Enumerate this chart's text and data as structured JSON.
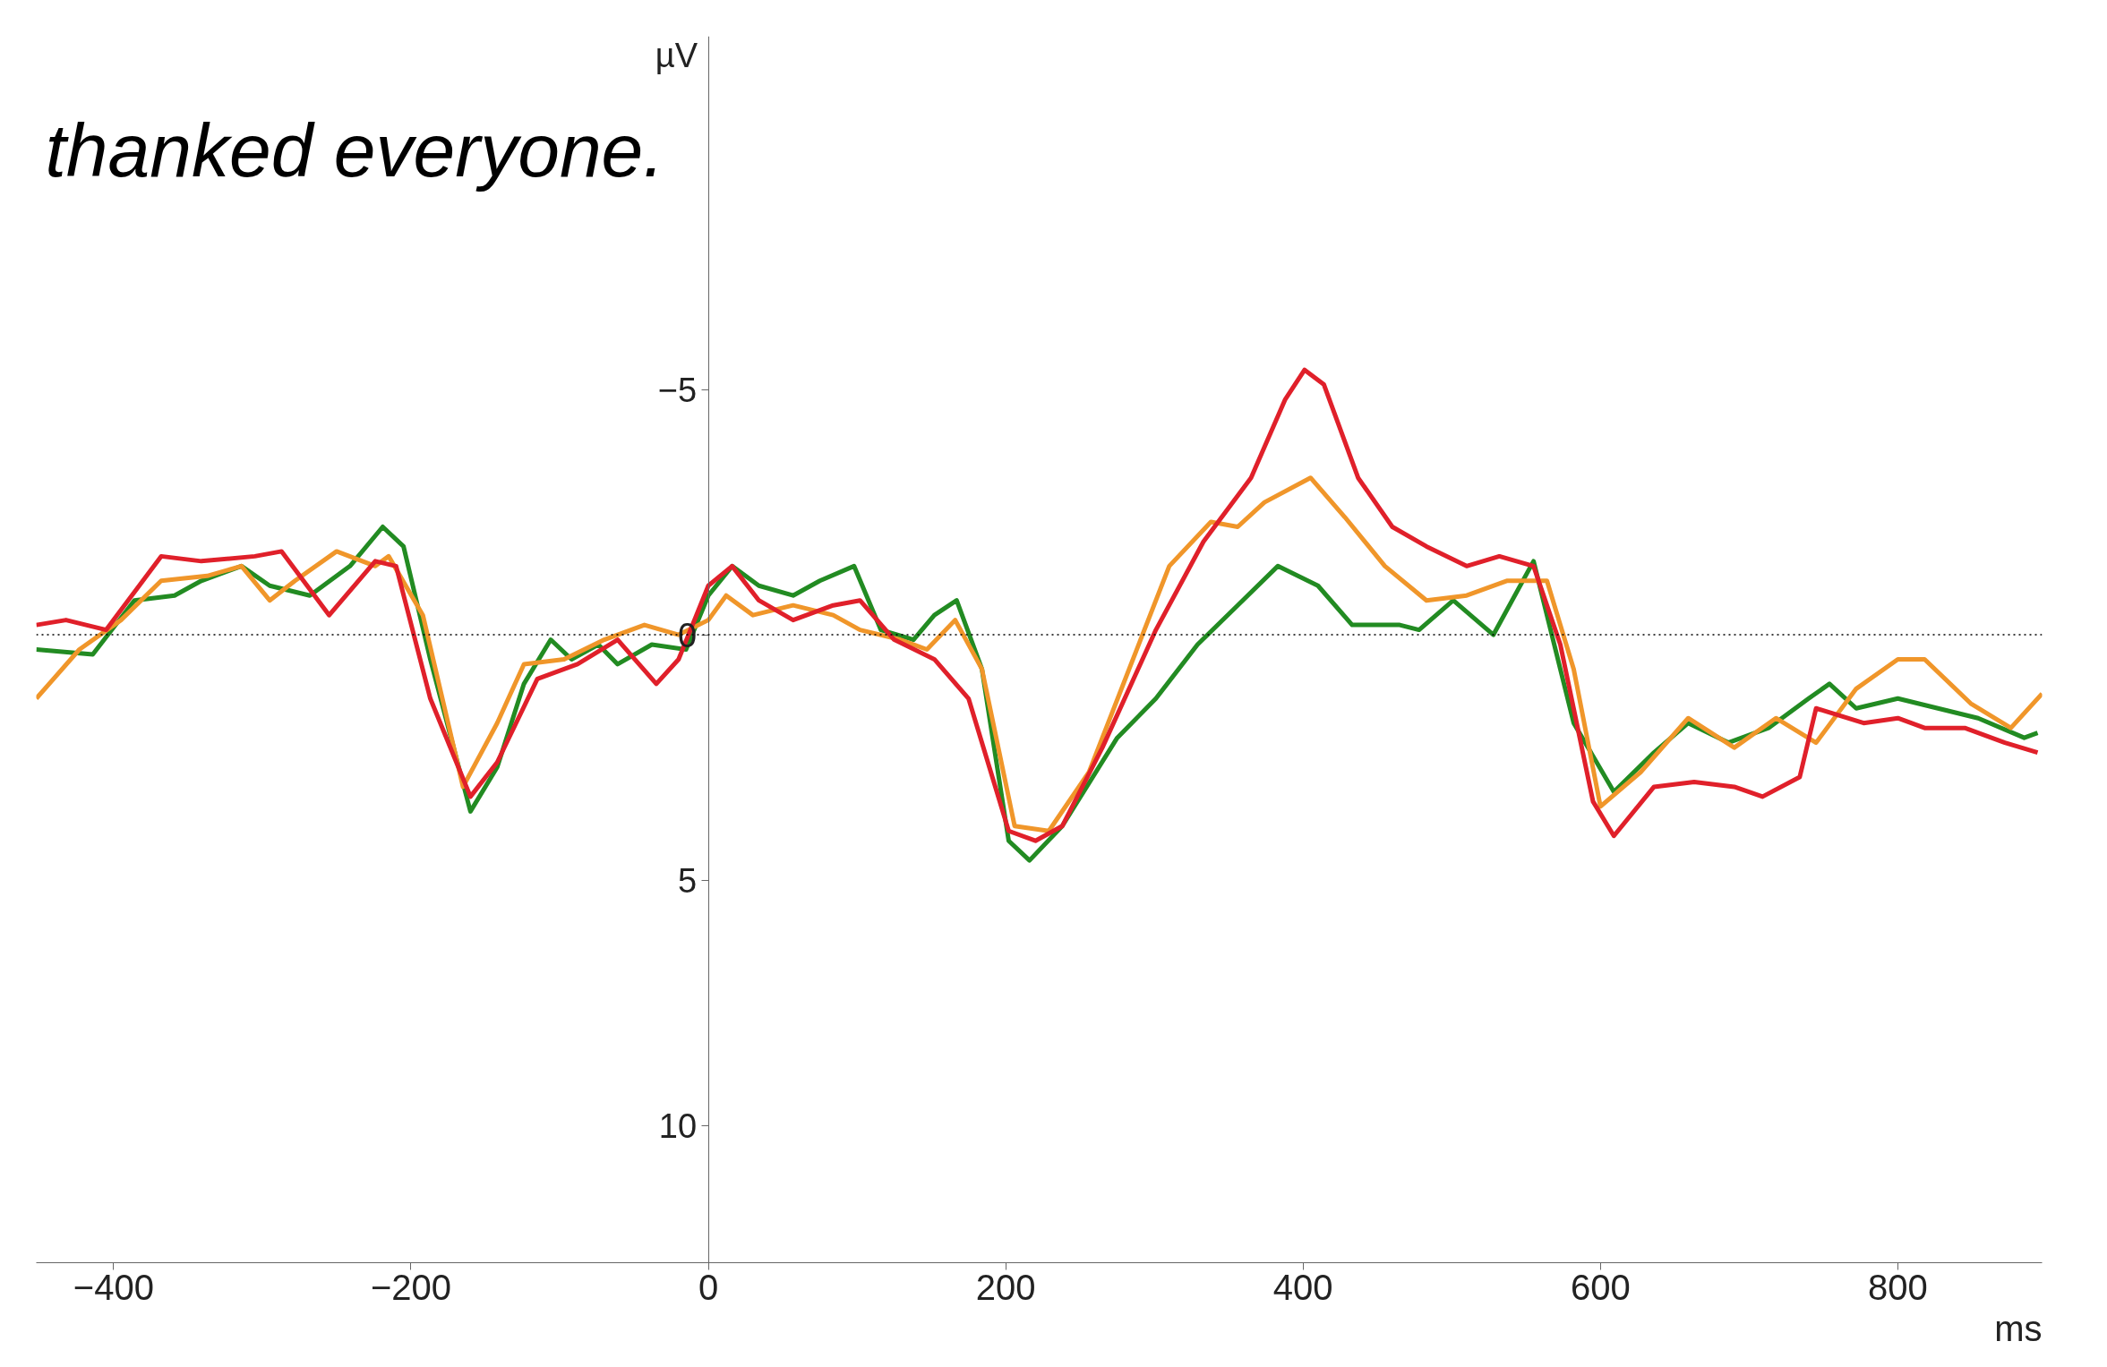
{
  "chart_data": {
    "type": "line",
    "xlabel": "ms",
    "ylabel": "µV",
    "annotations": [
      "thanked everyone."
    ],
    "xlim": [
      -452,
      897
    ],
    "ylim": [
      12.8,
      -12.2
    ],
    "xticks": [
      -400,
      -200,
      0,
      200,
      400,
      600,
      800
    ],
    "yticks": [
      -5,
      0,
      5,
      10
    ],
    "grid": false,
    "marker": "none",
    "line_style": "solid",
    "ref_lines": [
      {
        "axis": "y",
        "value": 0,
        "line_style": "dotted",
        "color": "#000000"
      }
    ],
    "series": [
      {
        "color": "#228b22",
        "x": [
          -452,
          -414,
          -386,
          -359,
          -341,
          -314,
          -295,
          -268,
          -241,
          -219,
          -205,
          -187,
          -160,
          -142,
          -124,
          -106,
          -92,
          -74,
          -61,
          -38,
          -15,
          0,
          16,
          34,
          57,
          75,
          98,
          116,
          138,
          152,
          167,
          184,
          202,
          216,
          238,
          275,
          301,
          329,
          356,
          383,
          410,
          433,
          465,
          478,
          501,
          528,
          555,
          582,
          609,
          636,
          659,
          686,
          713,
          740,
          754,
          772,
          800,
          827,
          854,
          885,
          894
        ],
        "values": [
          0.3,
          0.4,
          -0.7,
          -0.8,
          -1.1,
          -1.4,
          -1.0,
          -0.8,
          -1.4,
          -2.2,
          -1.8,
          0.5,
          3.6,
          2.7,
          1.0,
          0.1,
          0.5,
          0.2,
          0.6,
          0.2,
          0.3,
          -0.8,
          -1.4,
          -1.0,
          -0.8,
          -1.1,
          -1.4,
          -0.1,
          0.1,
          -0.4,
          -0.7,
          0.7,
          4.2,
          4.6,
          3.9,
          2.1,
          1.3,
          0.2,
          -0.6,
          -1.4,
          -1.0,
          -0.2,
          -0.2,
          -0.1,
          -0.7,
          0.0,
          -1.5,
          1.8,
          3.2,
          2.4,
          1.8,
          2.2,
          1.9,
          1.3,
          1.0,
          1.5,
          1.3,
          1.5,
          1.7,
          2.1,
          2.0
        ]
      },
      {
        "color": "#f0962a",
        "x": [
          -452,
          -423,
          -395,
          -368,
          -337,
          -314,
          -295,
          -278,
          -250,
          -224,
          -215,
          -192,
          -165,
          -142,
          -124,
          -97,
          -70,
          -43,
          -20,
          0,
          12,
          30,
          57,
          84,
          102,
          129,
          147,
          166,
          184,
          206,
          229,
          256,
          283,
          310,
          338,
          356,
          374,
          405,
          428,
          455,
          483,
          510,
          537,
          564,
          582,
          600,
          627,
          659,
          690,
          718,
          745,
          772,
          800,
          818,
          849,
          876,
          897
        ],
        "values": [
          1.3,
          0.3,
          -0.3,
          -1.1,
          -1.2,
          -1.4,
          -0.7,
          -1.1,
          -1.7,
          -1.4,
          -1.6,
          -0.4,
          3.1,
          1.8,
          0.6,
          0.5,
          0.1,
          -0.2,
          0.0,
          -0.3,
          -0.8,
          -0.4,
          -0.6,
          -0.4,
          -0.1,
          0.1,
          0.3,
          -0.3,
          0.7,
          3.9,
          4.0,
          2.8,
          0.7,
          -1.4,
          -2.3,
          -2.2,
          -2.7,
          -3.2,
          -2.4,
          -1.4,
          -0.7,
          -0.8,
          -1.1,
          -1.1,
          0.7,
          3.5,
          2.8,
          1.7,
          2.3,
          1.7,
          2.2,
          1.1,
          0.5,
          0.5,
          1.4,
          1.9,
          1.2
        ]
      },
      {
        "color": "#e0202a",
        "x": [
          -452,
          -432,
          -405,
          -368,
          -341,
          -305,
          -287,
          -255,
          -224,
          -210,
          -187,
          -160,
          -142,
          -115,
          -88,
          -61,
          -35,
          -20,
          0,
          16,
          34,
          57,
          84,
          102,
          125,
          152,
          175,
          202,
          220,
          238,
          265,
          301,
          333,
          365,
          388,
          401,
          414,
          437,
          460,
          483,
          510,
          532,
          555,
          573,
          595,
          609,
          636,
          663,
          690,
          709,
          734,
          745,
          777,
          800,
          818,
          845,
          872,
          894
        ],
        "values": [
          -0.2,
          -0.3,
          -0.1,
          -1.6,
          -1.5,
          -1.6,
          -1.7,
          -0.4,
          -1.5,
          -1.4,
          1.3,
          3.3,
          2.6,
          0.9,
          0.6,
          0.1,
          1.0,
          0.5,
          -1.0,
          -1.4,
          -0.7,
          -0.3,
          -0.6,
          -0.7,
          0.1,
          0.5,
          1.3,
          4.0,
          4.2,
          3.9,
          2.3,
          -0.1,
          -1.9,
          -3.2,
          -4.8,
          -5.4,
          -5.1,
          -3.2,
          -2.2,
          -1.8,
          -1.4,
          -1.6,
          -1.4,
          0.2,
          3.4,
          4.1,
          3.1,
          3.0,
          3.1,
          3.3,
          2.9,
          1.5,
          1.8,
          1.7,
          1.9,
          1.9,
          2.2,
          2.4
        ]
      }
    ]
  }
}
